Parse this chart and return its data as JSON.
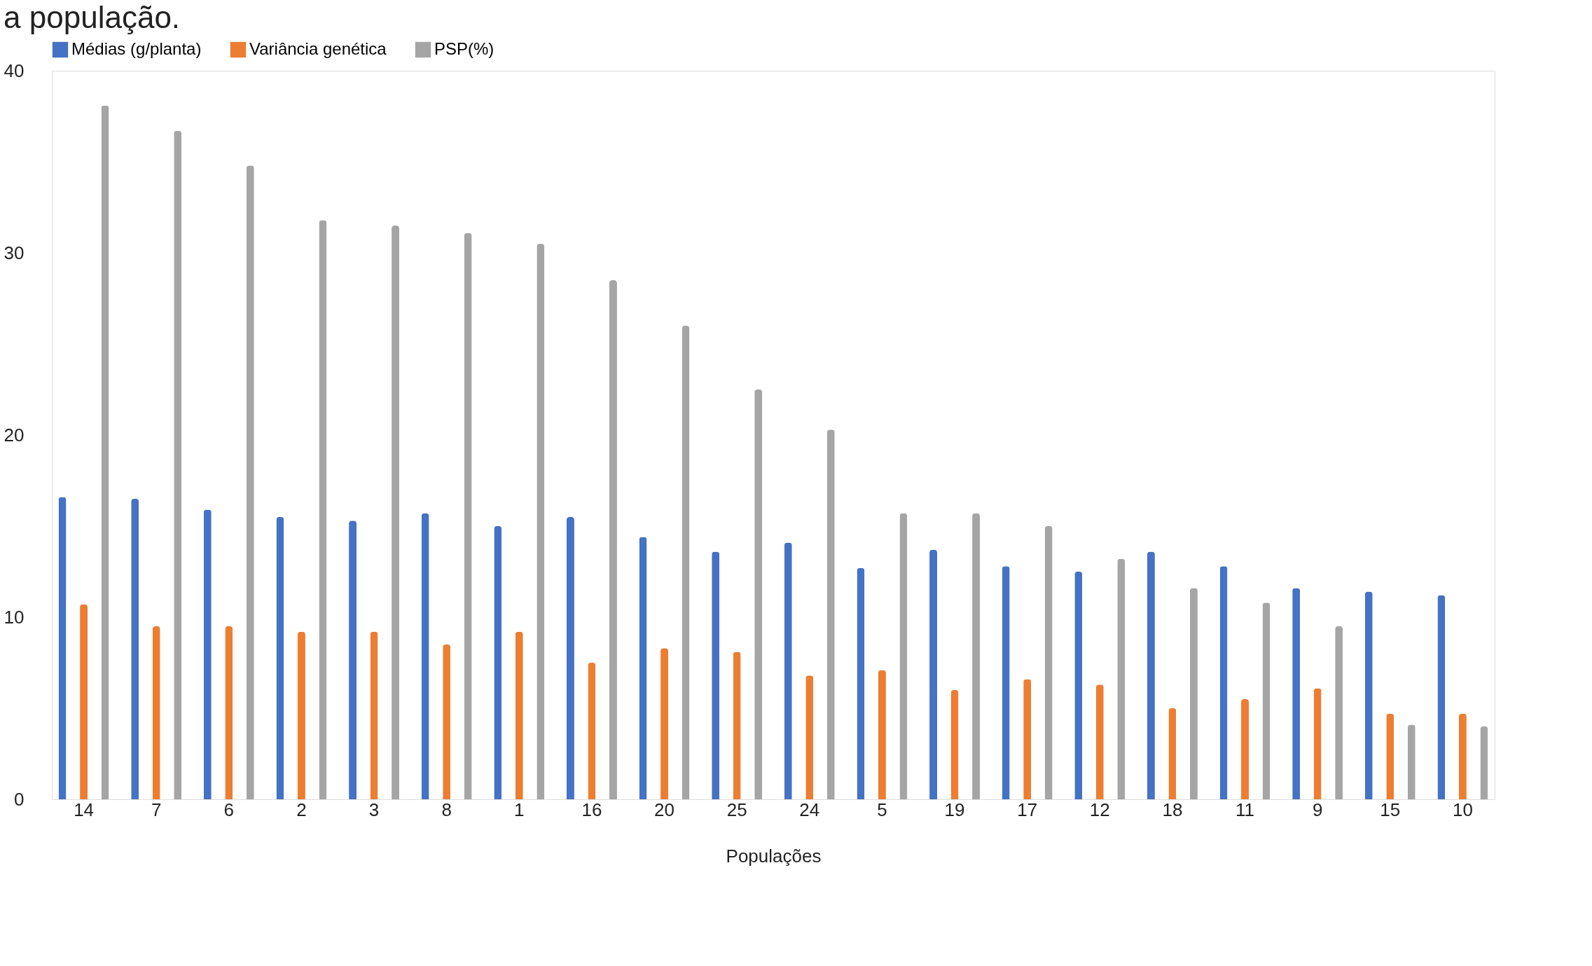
{
  "chart_data": {
    "type": "bar",
    "title": "a população.",
    "xlabel": "Populações",
    "categories": [
      "14",
      "7",
      "6",
      "2",
      "3",
      "8",
      "1",
      "16",
      "20",
      "25",
      "24",
      "5",
      "19",
      "17",
      "12",
      "18",
      "11",
      "9",
      "15",
      "10"
    ],
    "series": [
      {
        "name": "Médias (g/planta)",
        "color": "#4472c4",
        "values": [
          16.6,
          16.5,
          15.9,
          15.5,
          15.3,
          15.7,
          15.0,
          15.5,
          14.4,
          13.6,
          14.1,
          12.7,
          13.7,
          12.8,
          12.5,
          13.6,
          12.8,
          11.6,
          11.4,
          11.2
        ]
      },
      {
        "name": "Variância genética",
        "color": "#ed7d31",
        "values": [
          10.7,
          9.5,
          9.5,
          9.2,
          9.2,
          8.5,
          9.2,
          7.5,
          8.3,
          8.1,
          6.8,
          7.1,
          6.0,
          6.6,
          6.3,
          5.0,
          5.5,
          6.1,
          4.7,
          4.7
        ]
      },
      {
        "name": "PSP(%)",
        "color": "#a5a5a5",
        "values": [
          38.1,
          36.7,
          34.8,
          31.8,
          31.5,
          31.1,
          30.5,
          28.5,
          26.0,
          22.5,
          20.3,
          15.7,
          15.7,
          15.0,
          13.2,
          11.6,
          10.8,
          9.5,
          4.1,
          4.0
        ]
      }
    ],
    "ylim": [
      0,
      40
    ],
    "yticks": [
      0,
      10,
      20,
      30,
      40
    ],
    "grid": false,
    "legend": "top"
  }
}
